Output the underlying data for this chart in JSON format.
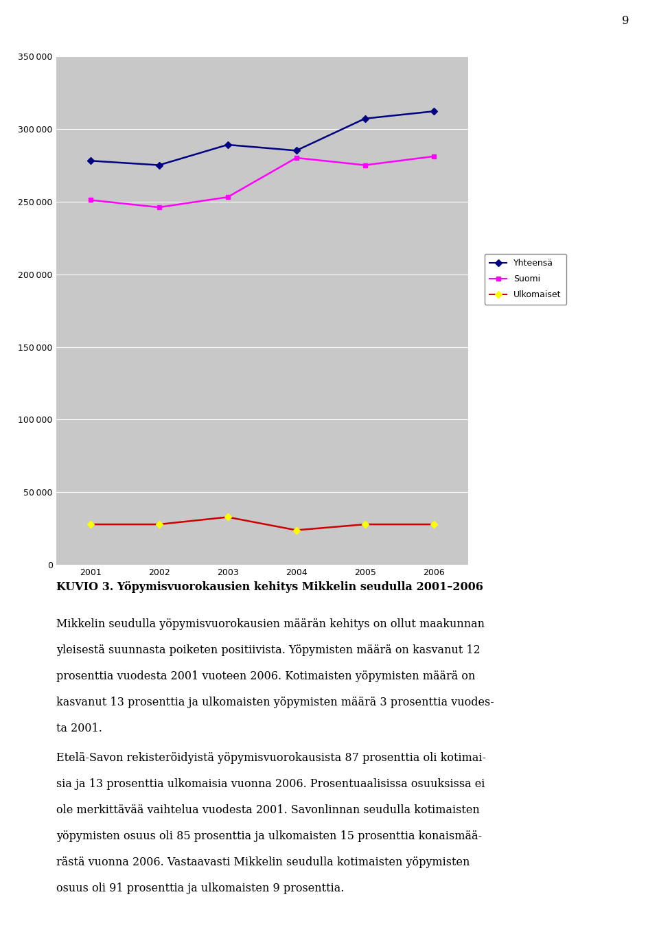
{
  "years": [
    2001,
    2002,
    2003,
    2004,
    2005,
    2006
  ],
  "yhteensa": [
    278000,
    275000,
    289000,
    285000,
    307000,
    312000
  ],
  "suomi": [
    251000,
    246000,
    253000,
    280000,
    275000,
    281000
  ],
  "ulkomaiset": [
    28000,
    28000,
    33000,
    24000,
    28000,
    28000
  ],
  "yhteensa_color": "#000080",
  "suomi_color": "#FF00FF",
  "ulkomaiset_color": "#CC0000",
  "plot_bg": "#C8C8C8",
  "ylim": [
    0,
    350000
  ],
  "yticks": [
    0,
    50000,
    100000,
    150000,
    200000,
    250000,
    300000,
    350000
  ],
  "legend_labels": [
    "Yhteensä",
    "Suomi",
    "Ulkomaiset"
  ],
  "page_number": "9",
  "figure_label": "KUVIO 3. Yöpymisvuorokausien kehitys Mikkelin seudulla 2001–2006",
  "body_text_lines": [
    "Mikkelin seudulla yöpymisvuorokausien määrän kehitys on ollut maakunnan",
    "yleisestä suunnasta poiketen positiivista. Yöpymisten määrä on kasvanut 12",
    "prosenttia vuodesta 2001 vuoteen 2006. Kotimaisten yöpymisten määrä on",
    "kasvanut 13 prosenttia ja ulkomaisten yöpymisten määrä 3 prosenttia vuodes-",
    "ta 2001."
  ],
  "body_text2_lines": [
    "Etelä-Savon rekisteröidyistä yöpymisvuorokausista 87 prosenttia oli kotimai-",
    "sia ja 13 prosenttia ulkomaisia vuonna 2006. Prosentuaalisissa osuuksissa ei",
    "ole merkittävää vaihtelua vuodesta 2001. Savonlinnan seudulla kotimaisten",
    "yöpymisten osuus oli 85 prosenttia ja ulkomaisten 15 prosenttia konaismää-",
    "rästä vuonna 2006. Vastaavasti Mikkelin seudulla kotimaisten yöpymisten",
    "osuus oli 91 prosenttia ja ulkomaisten 9 prosenttia."
  ]
}
